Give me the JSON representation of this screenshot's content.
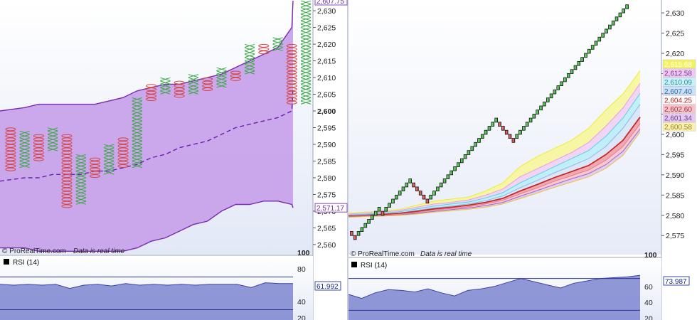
{
  "left_panel": {
    "credit": "© ProRealTime.com",
    "realtime": "Data is real time",
    "price_ticks": [
      "2,630",
      "2,625",
      "2,620",
      "2,615",
      "2,610",
      "2,605",
      "2,600",
      "2,595",
      "2,590",
      "2,585",
      "2,580",
      "2,575",
      "2,570",
      "2,565",
      "2,560"
    ],
    "price_ticks_values": [
      2630,
      2625,
      2620,
      2615,
      2610,
      2605,
      2600,
      2595,
      2590,
      2585,
      2580,
      2575,
      2570,
      2565,
      2560
    ],
    "badge_upper": "2,607.75",
    "badge_lower": "2,571.17",
    "rsi_label": "RSI (14)",
    "rsi_value": "61.992",
    "rsi_ticks": [
      "100",
      "80",
      "40",
      "20"
    ]
  },
  "right_panel": {
    "credit": "© ProRealTime.com",
    "realtime": "Data is real time",
    "price_ticks": [
      "2,630",
      "2,625",
      "2,620",
      "2,615",
      "2,610",
      "2,605",
      "2,600",
      "2,595",
      "2,590",
      "2,585",
      "2,580",
      "2,575"
    ],
    "price_ticks_values": [
      2630,
      2625,
      2620,
      2615,
      2610,
      2605,
      2600,
      2595,
      2590,
      2585,
      2580,
      2575
    ],
    "ma_badges": [
      {
        "label": "2,615.68",
        "color": "#f3f25a",
        "text": "#ffffff"
      },
      {
        "label": "2,612.58",
        "color": "#f0c8f4",
        "text": "#7a3a8a"
      },
      {
        "label": "2,610.09",
        "color": "#c8f0f7",
        "text": "#2e8ba0"
      },
      {
        "label": "2,607.40",
        "color": "#c8e0f8",
        "text": "#3a6aa8"
      },
      {
        "label": "2,604.25",
        "color": "#ffffff",
        "text": "#b71c1c"
      },
      {
        "label": "2,602.60",
        "color": "#f7c4cc",
        "text": "#a03040"
      },
      {
        "label": "2,601.34",
        "color": "#e8c8f0",
        "text": "#6a4090"
      },
      {
        "label": "2,600.58",
        "color": "#faf0b0",
        "text": "#9a8420"
      }
    ],
    "rsi_label": "RSI (14)",
    "rsi_value": "73.987",
    "rsi_ticks": [
      "100",
      "60",
      "40",
      "20"
    ]
  },
  "chart_data": [
    {
      "type": "point-and-figure",
      "title": "",
      "ylabel": "",
      "ylim": [
        2557,
        2633
      ],
      "box_size": 1,
      "columns": [
        {
          "kind": "O",
          "low": 2582,
          "high": 2595
        },
        {
          "kind": "X",
          "low": 2583,
          "high": 2594
        },
        {
          "kind": "O",
          "low": 2585,
          "high": 2593
        },
        {
          "kind": "X",
          "low": 2588,
          "high": 2595
        },
        {
          "kind": "O",
          "low": 2571,
          "high": 2593
        },
        {
          "kind": "X",
          "low": 2572,
          "high": 2587
        },
        {
          "kind": "O",
          "low": 2580,
          "high": 2586
        },
        {
          "kind": "X",
          "low": 2581,
          "high": 2590
        },
        {
          "kind": "O",
          "low": 2583,
          "high": 2592
        },
        {
          "kind": "X",
          "low": 2583,
          "high": 2604
        },
        {
          "kind": "O",
          "low": 2603,
          "high": 2608
        },
        {
          "kind": "X",
          "low": 2605,
          "high": 2610
        },
        {
          "kind": "O",
          "low": 2604,
          "high": 2609
        },
        {
          "kind": "X",
          "low": 2605,
          "high": 2611
        },
        {
          "kind": "O",
          "low": 2606,
          "high": 2610
        },
        {
          "kind": "X",
          "low": 2607,
          "high": 2613
        },
        {
          "kind": "O",
          "low": 2609,
          "high": 2612
        },
        {
          "kind": "X",
          "low": 2611,
          "high": 2620
        },
        {
          "kind": "O",
          "low": 2617,
          "high": 2620
        },
        {
          "kind": "X",
          "low": 2618,
          "high": 2622
        },
        {
          "kind": "O",
          "low": 2602,
          "high": 2620
        },
        {
          "kind": "X",
          "low": 2602,
          "high": 2633
        }
      ],
      "bands": {
        "upper": [
          2600,
          2601,
          2602,
          2602,
          2602,
          2602,
          2602,
          2603,
          2604,
          2606,
          2607,
          2608,
          2608,
          2609,
          2610,
          2611,
          2613,
          2615,
          2617,
          2619,
          2625,
          2633
        ],
        "middle": [
          2579,
          2580,
          2580,
          2581,
          2581,
          2581,
          2582,
          2582,
          2583,
          2584,
          2586,
          2587,
          2589,
          2590,
          2591,
          2593,
          2595,
          2596,
          2597,
          2598,
          2600,
          2607
        ],
        "lower": [
          2559,
          2559,
          2558,
          2558,
          2558,
          2558,
          2558,
          2558,
          2558,
          2559,
          2561,
          2562,
          2564,
          2566,
          2567,
          2570,
          2572,
          2572,
          2573,
          2573,
          2572,
          2571
        ]
      },
      "rsi": {
        "name": "RSI (14)",
        "last": 61.992,
        "levels": [
          70,
          30
        ],
        "values": [
          61,
          60,
          61,
          60,
          61,
          56,
          60,
          61,
          59,
          62,
          60,
          61,
          60,
          61,
          60,
          61,
          61,
          61,
          57,
          63,
          62,
          62
        ]
      }
    },
    {
      "type": "renko",
      "title": "",
      "ylabel": "",
      "ylim": [
        2570,
        2633
      ],
      "box_size": 1,
      "bricks": [
        {
          "dir": "down",
          "low": 2575,
          "high": 2576
        },
        {
          "dir": "down",
          "low": 2574,
          "high": 2575
        },
        {
          "dir": "up",
          "low": 2575,
          "high": 2576
        },
        {
          "dir": "up",
          "low": 2576,
          "high": 2577
        },
        {
          "dir": "up",
          "low": 2577,
          "high": 2578
        },
        {
          "dir": "up",
          "low": 2578,
          "high": 2579
        },
        {
          "dir": "up",
          "low": 2579,
          "high": 2580
        },
        {
          "dir": "up",
          "low": 2580,
          "high": 2581
        },
        {
          "dir": "up",
          "low": 2581,
          "high": 2582
        },
        {
          "dir": "down",
          "low": 2580,
          "high": 2581
        },
        {
          "dir": "up",
          "low": 2581,
          "high": 2582
        },
        {
          "dir": "up",
          "low": 2582,
          "high": 2583
        },
        {
          "dir": "up",
          "low": 2583,
          "high": 2584
        },
        {
          "dir": "up",
          "low": 2584,
          "high": 2585
        },
        {
          "dir": "up",
          "low": 2585,
          "high": 2586
        },
        {
          "dir": "up",
          "low": 2586,
          "high": 2587
        },
        {
          "dir": "up",
          "low": 2587,
          "high": 2588
        },
        {
          "dir": "up",
          "low": 2588,
          "high": 2589
        },
        {
          "dir": "down",
          "low": 2587,
          "high": 2588
        },
        {
          "dir": "down",
          "low": 2586,
          "high": 2587
        },
        {
          "dir": "down",
          "low": 2585,
          "high": 2586
        },
        {
          "dir": "down",
          "low": 2584,
          "high": 2585
        },
        {
          "dir": "down",
          "low": 2583,
          "high": 2584
        },
        {
          "dir": "up",
          "low": 2584,
          "high": 2585
        },
        {
          "dir": "up",
          "low": 2585,
          "high": 2586
        },
        {
          "dir": "up",
          "low": 2586,
          "high": 2587
        },
        {
          "dir": "up",
          "low": 2587,
          "high": 2588
        },
        {
          "dir": "up",
          "low": 2588,
          "high": 2589
        },
        {
          "dir": "up",
          "low": 2589,
          "high": 2590
        },
        {
          "dir": "up",
          "low": 2590,
          "high": 2591
        },
        {
          "dir": "up",
          "low": 2591,
          "high": 2592
        },
        {
          "dir": "up",
          "low": 2592,
          "high": 2593
        },
        {
          "dir": "up",
          "low": 2593,
          "high": 2594
        },
        {
          "dir": "up",
          "low": 2594,
          "high": 2595
        },
        {
          "dir": "up",
          "low": 2595,
          "high": 2596
        },
        {
          "dir": "up",
          "low": 2596,
          "high": 2597
        },
        {
          "dir": "up",
          "low": 2597,
          "high": 2598
        },
        {
          "dir": "up",
          "low": 2598,
          "high": 2599
        },
        {
          "dir": "up",
          "low": 2599,
          "high": 2600
        },
        {
          "dir": "up",
          "low": 2600,
          "high": 2601
        },
        {
          "dir": "up",
          "low": 2601,
          "high": 2602
        },
        {
          "dir": "up",
          "low": 2602,
          "high": 2603
        },
        {
          "dir": "up",
          "low": 2603,
          "high": 2604
        },
        {
          "dir": "down",
          "low": 2602,
          "high": 2603
        },
        {
          "dir": "down",
          "low": 2601,
          "high": 2602
        },
        {
          "dir": "down",
          "low": 2600,
          "high": 2601
        },
        {
          "dir": "down",
          "low": 2599,
          "high": 2600
        },
        {
          "dir": "down",
          "low": 2598,
          "high": 2599
        },
        {
          "dir": "up",
          "low": 2599,
          "high": 2600
        },
        {
          "dir": "up",
          "low": 2600,
          "high": 2601
        },
        {
          "dir": "up",
          "low": 2601,
          "high": 2602
        },
        {
          "dir": "up",
          "low": 2602,
          "high": 2603
        },
        {
          "dir": "up",
          "low": 2603,
          "high": 2604
        },
        {
          "dir": "up",
          "low": 2604,
          "high": 2605
        },
        {
          "dir": "up",
          "low": 2605,
          "high": 2606
        },
        {
          "dir": "up",
          "low": 2606,
          "high": 2607
        },
        {
          "dir": "up",
          "low": 2607,
          "high": 2608
        },
        {
          "dir": "up",
          "low": 2608,
          "high": 2609
        },
        {
          "dir": "up",
          "low": 2609,
          "high": 2610
        },
        {
          "dir": "up",
          "low": 2610,
          "high": 2611
        },
        {
          "dir": "up",
          "low": 2611,
          "high": 2612
        },
        {
          "dir": "up",
          "low": 2612,
          "high": 2613
        },
        {
          "dir": "up",
          "low": 2613,
          "high": 2614
        },
        {
          "dir": "up",
          "low": 2614,
          "high": 2615
        },
        {
          "dir": "up",
          "low": 2615,
          "high": 2616
        },
        {
          "dir": "up",
          "low": 2616,
          "high": 2617
        },
        {
          "dir": "up",
          "low": 2617,
          "high": 2618
        },
        {
          "dir": "up",
          "low": 2618,
          "high": 2619
        },
        {
          "dir": "up",
          "low": 2619,
          "high": 2620
        },
        {
          "dir": "up",
          "low": 2620,
          "high": 2621
        },
        {
          "dir": "up",
          "low": 2621,
          "high": 2622
        },
        {
          "dir": "up",
          "low": 2622,
          "high": 2623
        },
        {
          "dir": "up",
          "low": 2623,
          "high": 2624
        },
        {
          "dir": "up",
          "low": 2624,
          "high": 2625
        },
        {
          "dir": "up",
          "low": 2625,
          "high": 2626
        },
        {
          "dir": "up",
          "low": 2626,
          "high": 2627
        },
        {
          "dir": "up",
          "low": 2627,
          "high": 2628
        },
        {
          "dir": "up",
          "low": 2628,
          "high": 2629
        },
        {
          "dir": "up",
          "low": 2629,
          "high": 2630
        },
        {
          "dir": "up",
          "low": 2630,
          "high": 2631
        },
        {
          "dir": "up",
          "low": 2631,
          "high": 2632
        }
      ],
      "moving_averages": [
        {
          "color": "#ecec3a",
          "fill": "#f6f69a",
          "last": 2615.68,
          "values": [
            2580.5,
            2580.8,
            2581.0,
            2581.5,
            2582.5,
            2583.5,
            2584.0,
            2584.5,
            2586.0,
            2588.0,
            2592.0,
            2594.5,
            2596.5,
            2598.5,
            2601.5,
            2606.0,
            2610.0,
            2615.68
          ]
        },
        {
          "color": "#e2a0e8",
          "fill": "#f2d0f4",
          "last": 2612.58,
          "values": [
            2580.3,
            2580.6,
            2580.8,
            2581.2,
            2582.0,
            2582.8,
            2583.2,
            2583.8,
            2585.0,
            2586.5,
            2589.5,
            2591.5,
            2593.5,
            2595.5,
            2598.0,
            2602.0,
            2606.5,
            2612.58
          ]
        },
        {
          "color": "#5ad0e4",
          "fill": "#bdeef6",
          "last": 2610.09,
          "values": [
            2580.1,
            2580.3,
            2580.5,
            2580.9,
            2581.6,
            2582.3,
            2582.8,
            2583.3,
            2584.3,
            2585.6,
            2588.0,
            2590.0,
            2592.0,
            2594.0,
            2596.0,
            2599.5,
            2604.0,
            2610.09
          ]
        },
        {
          "color": "#8cb8ec",
          "fill": "#d6e6f8",
          "last": 2607.4,
          "values": [
            2580.0,
            2580.1,
            2580.3,
            2580.6,
            2581.2,
            2581.8,
            2582.3,
            2582.8,
            2583.6,
            2584.8,
            2586.8,
            2588.6,
            2590.5,
            2592.2,
            2594.0,
            2597.0,
            2601.5,
            2607.4
          ]
        },
        {
          "color": "#c62828",
          "fill": "#f2a0aa",
          "last": 2604.25,
          "values": [
            2579.8,
            2580.0,
            2580.2,
            2580.5,
            2581.0,
            2581.6,
            2582.0,
            2582.5,
            2583.2,
            2584.2,
            2586.0,
            2587.6,
            2589.3,
            2590.8,
            2592.3,
            2595.0,
            2598.5,
            2604.25
          ]
        },
        {
          "color": "#e57f90",
          "fill": "#f7c4cc",
          "last": 2602.6,
          "values": [
            2579.7,
            2579.9,
            2580.0,
            2580.3,
            2580.7,
            2581.3,
            2581.7,
            2582.1,
            2582.8,
            2583.7,
            2585.3,
            2586.8,
            2588.4,
            2589.8,
            2591.2,
            2593.6,
            2597.0,
            2602.6
          ]
        },
        {
          "color": "#9a6ac8",
          "fill": "#e0c8f0",
          "last": 2601.34,
          "values": [
            2579.6,
            2579.8,
            2579.9,
            2580.1,
            2580.5,
            2581.0,
            2581.4,
            2581.8,
            2582.4,
            2583.2,
            2584.7,
            2586.1,
            2587.6,
            2589.0,
            2590.3,
            2592.5,
            2595.8,
            2601.34
          ]
        },
        {
          "color": "#f0c040",
          "fill": "#faecb0",
          "last": 2600.58,
          "values": [
            2579.5,
            2579.7,
            2579.8,
            2580.0,
            2580.3,
            2580.8,
            2581.1,
            2581.5,
            2582.0,
            2582.8,
            2584.1,
            2585.5,
            2586.9,
            2588.2,
            2589.5,
            2591.6,
            2594.8,
            2600.58
          ]
        }
      ],
      "rsi": {
        "name": "RSI (14)",
        "last": 73.987,
        "levels": [
          70,
          30
        ],
        "values": [
          50,
          45,
          52,
          56,
          55,
          53,
          57,
          52,
          48,
          55,
          57,
          60,
          65,
          70,
          66,
          62,
          58,
          64,
          67,
          70,
          71,
          72,
          73.987
        ]
      }
    }
  ]
}
